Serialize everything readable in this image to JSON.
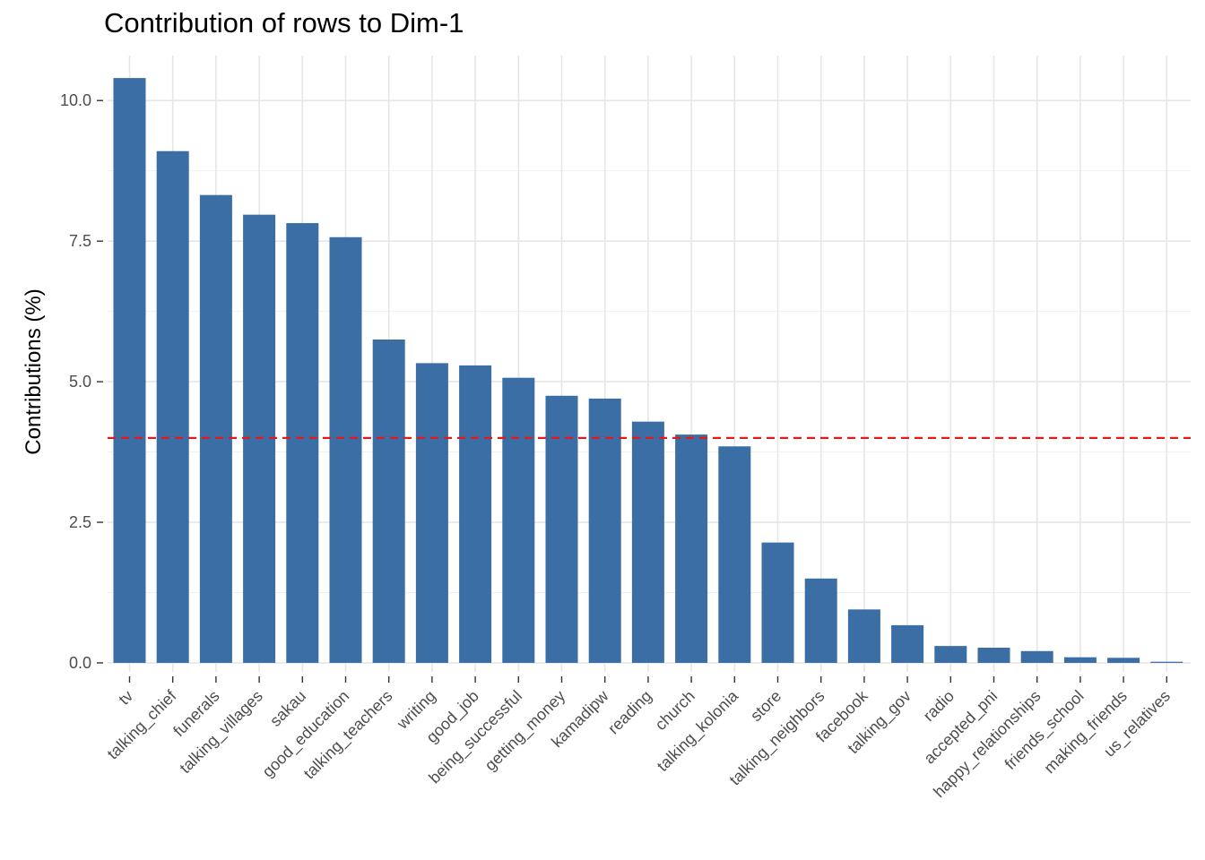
{
  "chart_data": {
    "type": "bar",
    "title": "Contribution of rows to Dim-1",
    "xlabel": "",
    "ylabel": "Contributions (%)",
    "ylim": [
      -0.16,
      10.8
    ],
    "yticks": [
      0.0,
      2.5,
      5.0,
      7.5,
      10.0
    ],
    "ytick_labels": [
      "0.0",
      "2.5",
      "5.0",
      "7.5",
      "10.0"
    ],
    "grid": true,
    "bar_color": "#3A6EA5",
    "reference_line": {
      "value": 4.0,
      "color": "#E31A1C",
      "style": "dashed"
    },
    "categories": [
      "tv",
      "talking_chief",
      "funerals",
      "talking_villages",
      "sakau",
      "good_education",
      "talking_teachers",
      "writing",
      "good_job",
      "being_successful",
      "getting_money",
      "kamadipw",
      "reading",
      "church",
      "talking_kolonia",
      "store",
      "talking_neighbors",
      "facebook",
      "talking_gov",
      "radio",
      "accepted_pni",
      "happy_relationships",
      "friends_school",
      "making_friends",
      "us_relatives"
    ],
    "values": [
      10.4,
      9.1,
      8.32,
      7.97,
      7.82,
      7.57,
      5.75,
      5.33,
      5.29,
      5.07,
      4.75,
      4.7,
      4.29,
      4.06,
      3.85,
      2.14,
      1.5,
      0.95,
      0.67,
      0.3,
      0.27,
      0.21,
      0.1,
      0.09,
      0.02
    ]
  }
}
